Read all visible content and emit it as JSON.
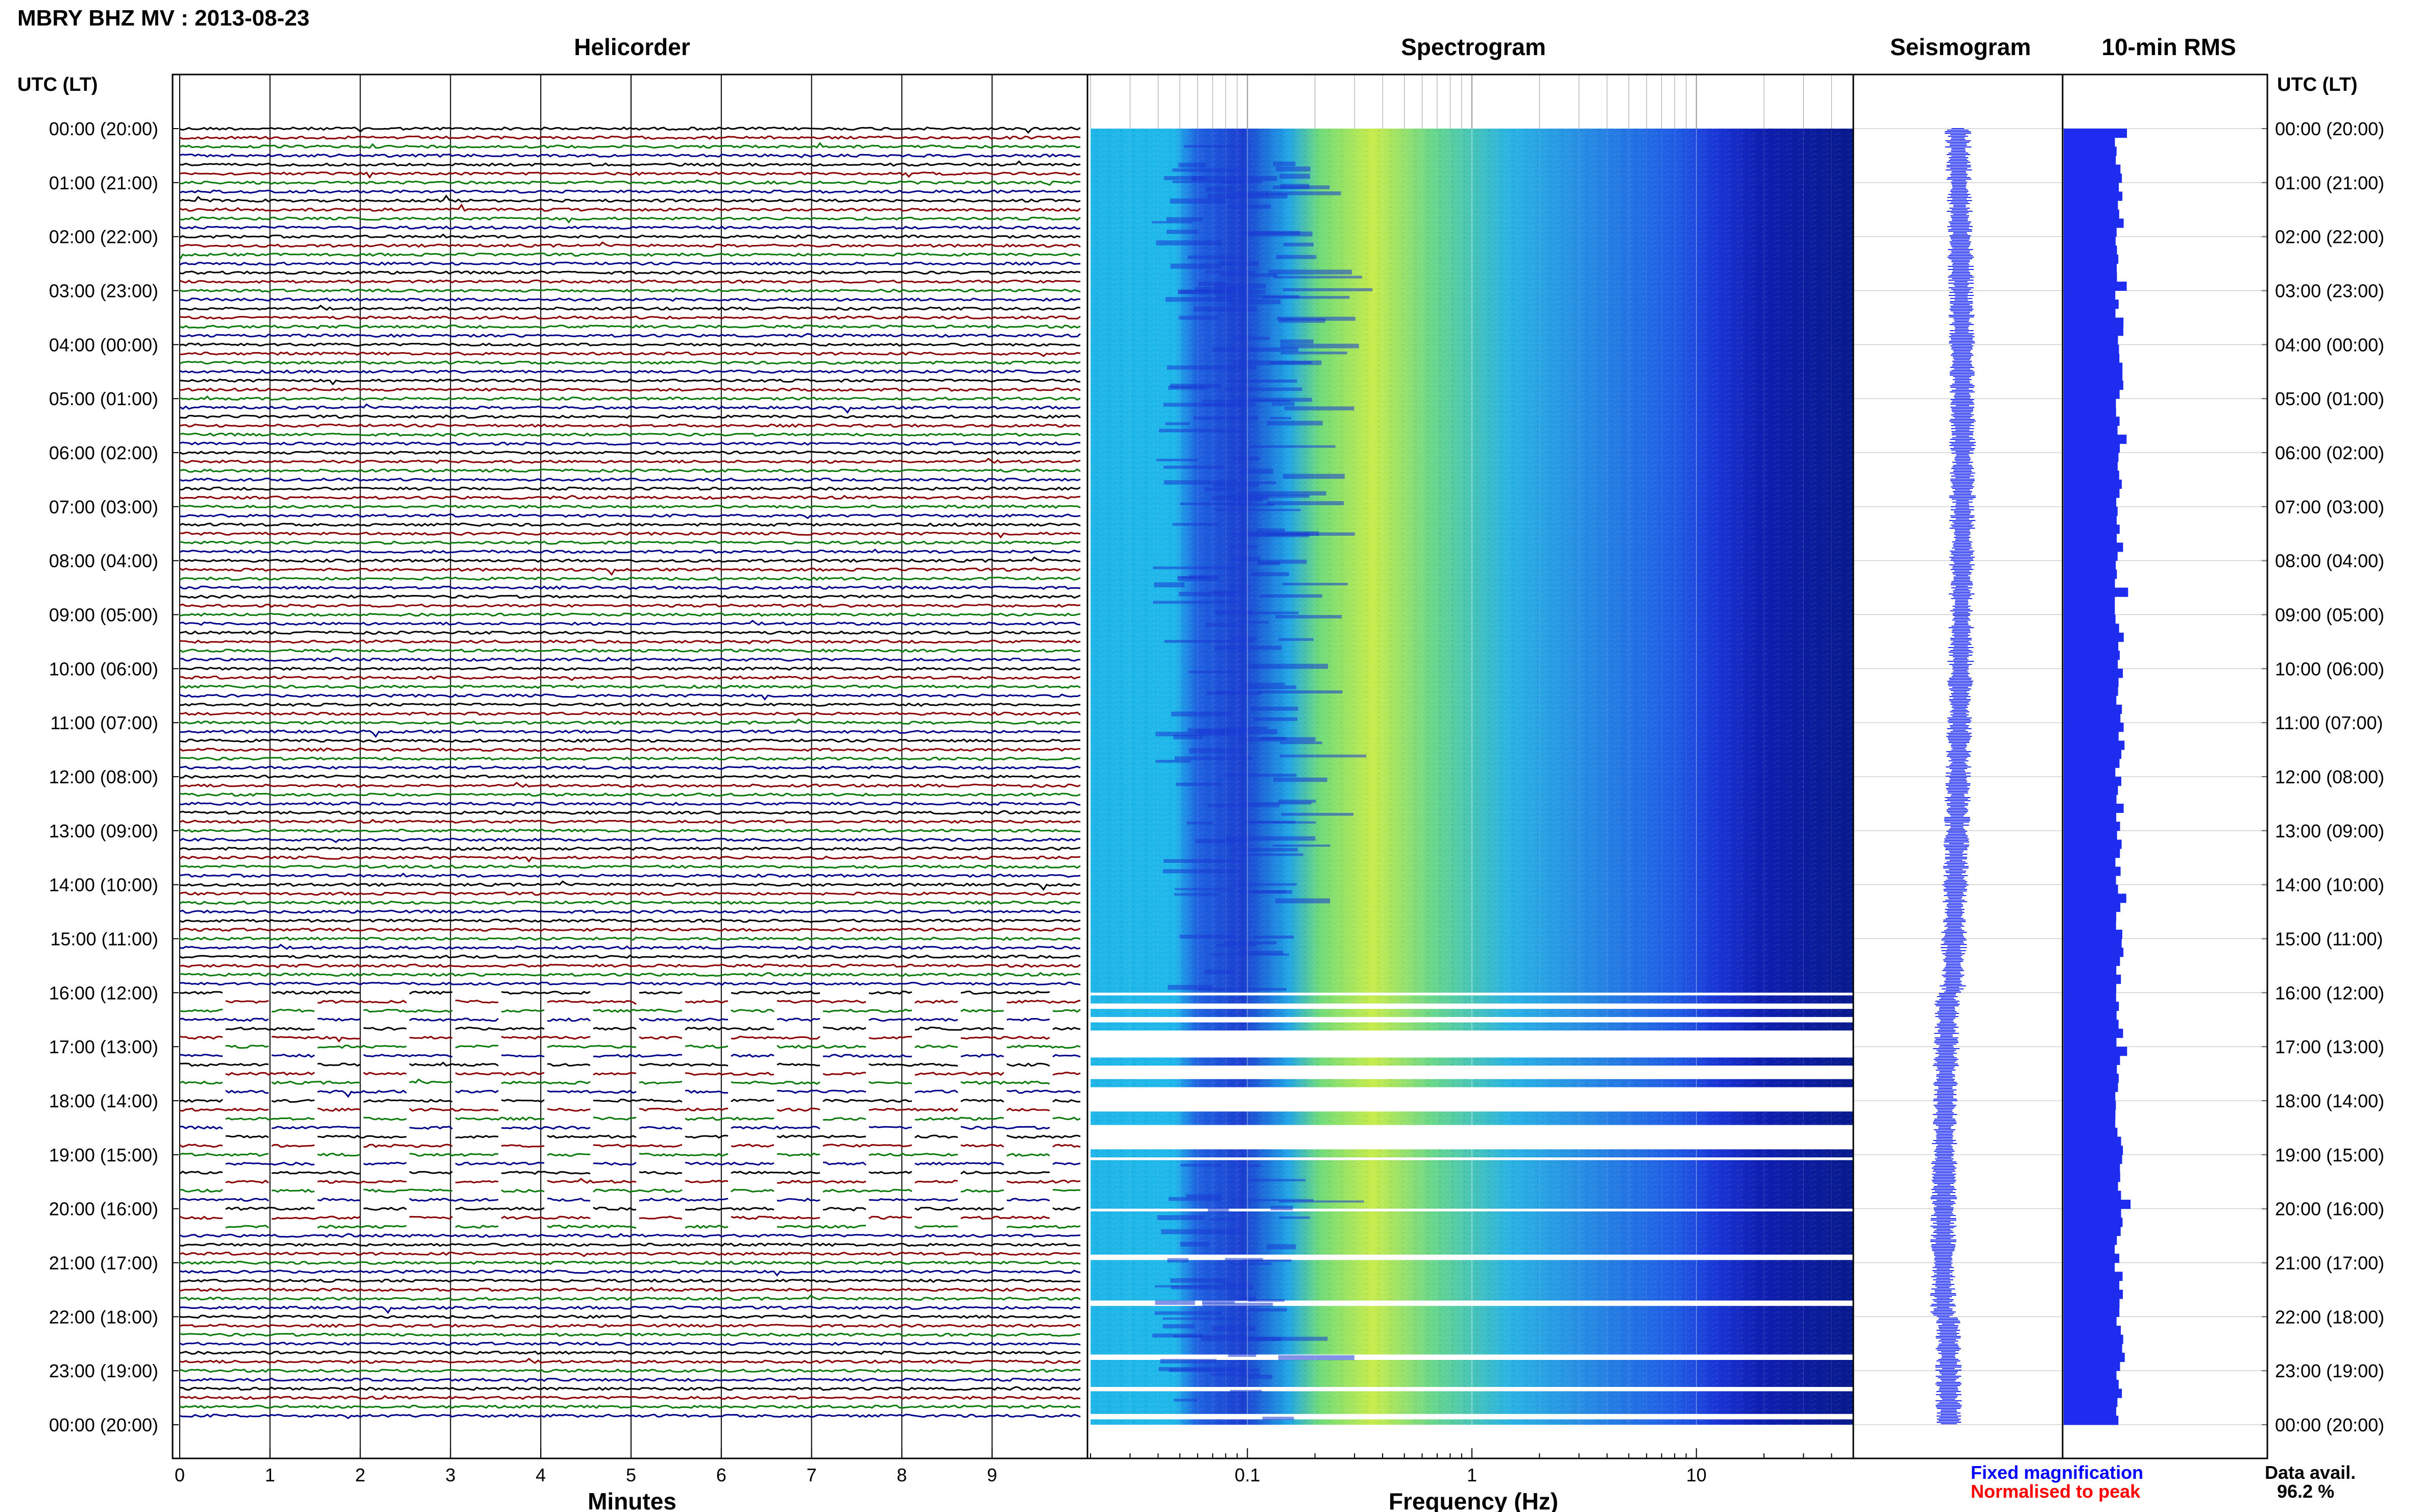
{
  "title": "MBRY BHZ MV : 2013-08-23",
  "panels": {
    "helicorder": "Helicorder",
    "spectrogram": "Spectrogram",
    "seismogram": "Seismogram",
    "rms": "10-min RMS"
  },
  "time_axis": {
    "label_left": "UTC (LT)",
    "label_right": "UTC (LT)",
    "hour_labels": [
      "00:00 (20:00)",
      "01:00 (21:00)",
      "02:00 (22:00)",
      "03:00 (23:00)",
      "04:00 (00:00)",
      "05:00 (01:00)",
      "06:00 (02:00)",
      "07:00 (03:00)",
      "08:00 (04:00)",
      "09:00 (05:00)",
      "10:00 (06:00)",
      "11:00 (07:00)",
      "12:00 (08:00)",
      "13:00 (09:00)",
      "14:00 (10:00)",
      "15:00 (11:00)",
      "16:00 (12:00)",
      "17:00 (13:00)",
      "18:00 (14:00)",
      "19:00 (15:00)",
      "20:00 (16:00)",
      "21:00 (17:00)",
      "22:00 (18:00)",
      "23:00 (19:00)",
      "00:00 (20:00)"
    ]
  },
  "legend": {
    "fixed": "Fixed magnification",
    "normalised": "Normalised to peak",
    "fixed_color": "#0000ff",
    "normalised_color": "#ff0000"
  },
  "availability": {
    "label": "Data avail.",
    "value": "96.2 %"
  },
  "colors": {
    "trace_cycle": [
      "#000000",
      "#8b0000",
      "#0a7a0a",
      "#00008b"
    ],
    "rms_fill": "#1e2cf0",
    "seismogram": "#1e2cf0"
  },
  "chart_data": [
    {
      "type": "line",
      "name": "helicorder",
      "title": "Helicorder",
      "xlabel": "Minutes",
      "x_ticks": [
        "0",
        "1",
        "2",
        "3",
        "4",
        "5",
        "6",
        "7",
        "8",
        "9"
      ],
      "xlim": [
        0,
        10
      ],
      "ylim": [
        0,
        24
      ],
      "rows": 144,
      "gap_hours": [
        16,
        20.5
      ]
    },
    {
      "type": "heatmap",
      "name": "spectrogram",
      "title": "Spectrogram",
      "xlabel": "Frequency (Hz)",
      "x_scale": "log",
      "x_ticks": [
        "0.1",
        "1",
        "10"
      ],
      "xlim": [
        0.02,
        50
      ],
      "ylim": [
        0,
        24
      ]
    },
    {
      "type": "line",
      "name": "seismogram",
      "title": "Seismogram",
      "ylim": [
        0,
        24
      ]
    },
    {
      "type": "bar",
      "name": "rms",
      "title": "10-min RMS",
      "ylim": [
        0,
        24
      ]
    }
  ]
}
